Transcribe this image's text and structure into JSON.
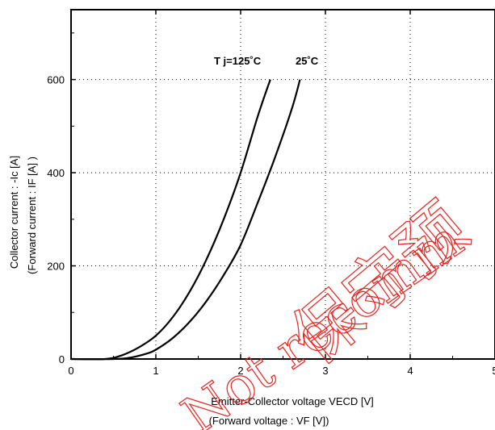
{
  "chart_data": {
    "type": "line",
    "title": "",
    "xlabel": "Emitter-Collector voltage  VECD  [V]",
    "xlabel_sub": "(Forward  voltage   :   VF [V])",
    "ylabel": "Collector current  :  -Ic  [A]",
    "ylabel_sub": "(Forward  current  :  IF  [A] )",
    "xlim": [
      0,
      5
    ],
    "ylim": [
      0,
      750
    ],
    "x_ticks": [
      0,
      1,
      2,
      3,
      4,
      5
    ],
    "y_ticks": [
      0,
      200,
      400,
      600
    ],
    "x_tick_labels": [
      "0",
      "1",
      "2",
      "3",
      "4",
      "5"
    ],
    "y_tick_labels": [
      "0",
      "200",
      "400",
      "600"
    ],
    "grid": true,
    "grid_style": "dotted",
    "series": [
      {
        "name": "Tj=125°C",
        "label": "T j=125˚C",
        "x": [
          0.0,
          0.4,
          0.6,
          0.8,
          1.0,
          1.2,
          1.4,
          1.6,
          1.8,
          2.0,
          2.2,
          2.35
        ],
        "y": [
          0,
          0,
          8,
          25,
          50,
          90,
          145,
          215,
          300,
          400,
          520,
          600
        ]
      },
      {
        "name": "25°C",
        "label": "25˚C",
        "x": [
          0.0,
          0.5,
          0.7,
          0.9,
          1.0,
          1.2,
          1.4,
          1.6,
          1.8,
          2.0,
          2.2,
          2.4,
          2.6,
          2.7
        ],
        "y": [
          0,
          0,
          3,
          12,
          20,
          45,
          80,
          125,
          180,
          245,
          335,
          430,
          535,
          600
        ]
      }
    ]
  },
  "watermark": {
    "line1": "保守预",
    "line2": "Not recomm",
    "color": "#e8231f"
  }
}
